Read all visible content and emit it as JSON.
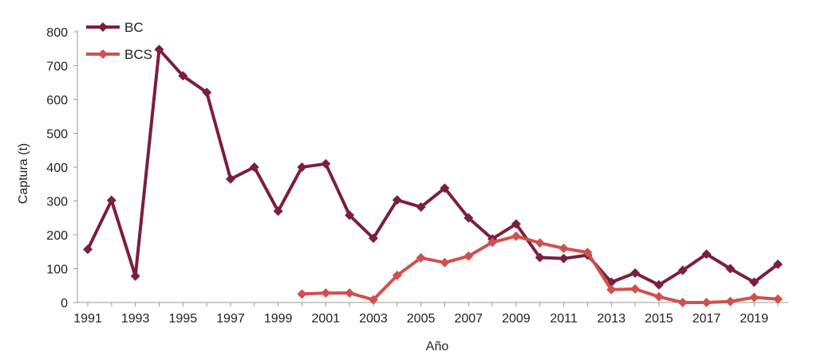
{
  "chart_data": {
    "type": "line",
    "xlabel": "Año",
    "ylabel": "Captura (t)",
    "xlim": [
      1991,
      2020
    ],
    "ylim": [
      0,
      800
    ],
    "xticks": [
      "1991",
      "1993",
      "1995",
      "1997",
      "1999",
      "2001",
      "2003",
      "2005",
      "2007",
      "2009",
      "2011",
      "2013",
      "2015",
      "2017",
      "2019"
    ],
    "yticks": [
      "0",
      "100",
      "200",
      "300",
      "400",
      "500",
      "600",
      "700",
      "800"
    ],
    "legend_position": "top-left",
    "grid": false,
    "series": [
      {
        "name": "BC",
        "color": "#7a1f3d",
        "x": [
          1991,
          1992,
          1993,
          1994,
          1995,
          1996,
          1997,
          1998,
          1999,
          2000,
          2001,
          2002,
          2003,
          2004,
          2005,
          2006,
          2007,
          2008,
          2009,
          2010,
          2011,
          2012,
          2013,
          2014,
          2015,
          2016,
          2017,
          2018,
          2019,
          2020
        ],
        "values": [
          157,
          302,
          78,
          748,
          670,
          621,
          365,
          400,
          270,
          400,
          410,
          258,
          190,
          303,
          282,
          338,
          250,
          188,
          232,
          133,
          130,
          140,
          60,
          87,
          52,
          95,
          143,
          100,
          60,
          113
        ]
      },
      {
        "name": "BCS",
        "color": "#d0504e",
        "x": [
          2000,
          2001,
          2002,
          2003,
          2004,
          2005,
          2006,
          2007,
          2008,
          2009,
          2010,
          2011,
          2012,
          2013,
          2014,
          2015,
          2016,
          2017,
          2018,
          2019,
          2020
        ],
        "values": [
          25,
          28,
          28,
          8,
          80,
          132,
          118,
          137,
          178,
          196,
          176,
          160,
          148,
          38,
          40,
          17,
          0,
          0,
          3,
          15,
          10
        ]
      }
    ]
  }
}
